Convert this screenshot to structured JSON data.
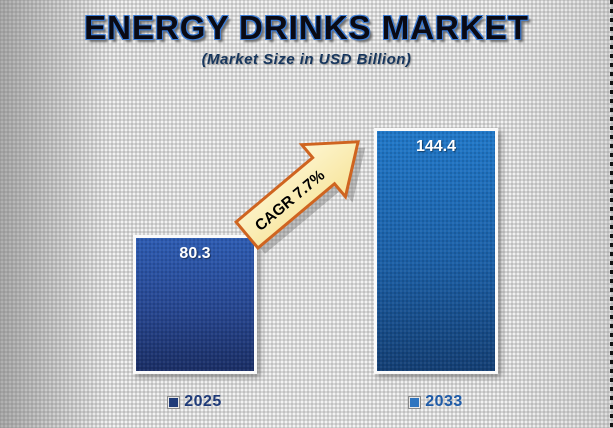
{
  "slide": {
    "title": "ENERGY DRINKS MARKET",
    "subtitle": "(Market Size in USD Billion)"
  },
  "chart_data": {
    "type": "bar",
    "title": "ENERGY DRINKS MARKET",
    "subtitle": "(Market Size in USD Billion)",
    "categories": [
      "2025",
      "2033"
    ],
    "values": [
      80.3,
      144.4
    ],
    "value_labels": [
      "80.3",
      "144.4"
    ],
    "ylabel": "Market Size in USD Billion",
    "ylim": [
      0,
      160
    ],
    "grid": false,
    "legend_position": "bottom",
    "annotation": "CAGR 7.7%",
    "bar_colors": [
      {
        "top": "#2e5cb2",
        "bottom": "#1b2f66"
      },
      {
        "top": "#2178c8",
        "bottom": "#143f74"
      }
    ]
  },
  "legend": {
    "items": [
      {
        "label": "2025",
        "color": "#1f3b79"
      },
      {
        "label": "2033",
        "color": "#2f75c0"
      }
    ]
  },
  "annotation": {
    "label": "CAGR 7.7%",
    "fill": "#fbeeb5",
    "border": "#cf6420",
    "text_color": "#000000"
  }
}
